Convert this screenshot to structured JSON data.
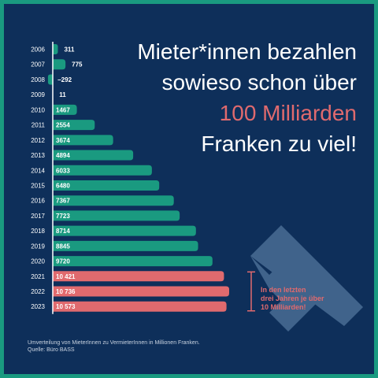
{
  "headline": {
    "line1": "Mieter*innen bezahlen",
    "line2": "sowieso schon über",
    "line3": "100 Milliarden",
    "line4": "Franken zu viel!"
  },
  "annotation": {
    "line1": "In den letzten",
    "line2": "drei Jahren je über",
    "line3": "10 Milliarden!"
  },
  "footnote": {
    "line1": "Umverteilung von MieterInnen zu VermieterInnen in Millionen Franken.",
    "line2": "Quelle: Büro BASS"
  },
  "colors": {
    "background": "#0e2f5a",
    "frame": "#1a9a80",
    "bar_default": "#1a9a80",
    "bar_highlight": "#e06a6e",
    "text": "#ffffff",
    "accent": "#e06a6e"
  },
  "chart_data": {
    "type": "bar",
    "orientation": "horizontal",
    "categories": [
      "2006",
      "2007",
      "2008",
      "2009",
      "2010",
      "2011",
      "2012",
      "2013",
      "2014",
      "2015",
      "2016",
      "2017",
      "2018",
      "2019",
      "2020",
      "2021",
      "2022",
      "2023"
    ],
    "values": [
      311,
      775,
      -292,
      11,
      1467,
      2554,
      3674,
      4894,
      6033,
      6480,
      7367,
      7723,
      8714,
      8845,
      9720,
      10421,
      10736,
      10573
    ],
    "value_labels": [
      "311",
      "775",
      "−292",
      "11",
      "1467",
      "2554",
      "3674",
      "4894",
      "6033",
      "6480",
      "7367",
      "7723",
      "8714",
      "8845",
      "9720",
      "10 421",
      "10 736",
      "10 573"
    ],
    "highlight": [
      "2021",
      "2022",
      "2023"
    ],
    "xlim": [
      -292,
      10736
    ],
    "title": "",
    "xlabel": "",
    "ylabel": ""
  }
}
